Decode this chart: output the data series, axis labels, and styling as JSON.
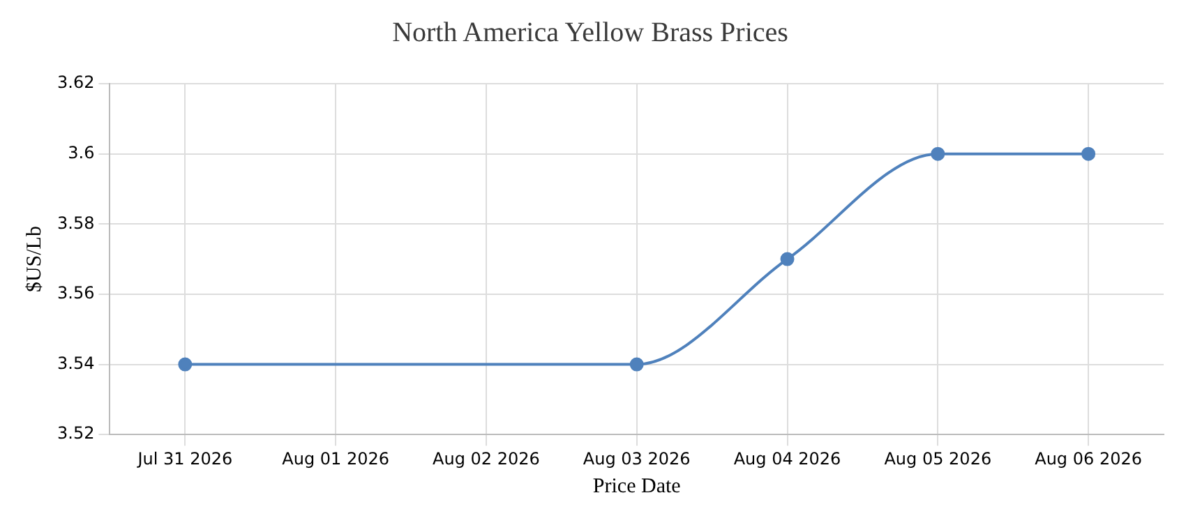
{
  "chart_data": {
    "type": "line",
    "title": "North America Yellow Brass Prices",
    "xlabel": "Price Date",
    "ylabel": "$US/Lb",
    "x": [
      "2026-07-31",
      "2026-08-03",
      "2026-08-04",
      "2026-08-05",
      "2026-08-06"
    ],
    "series": [
      {
        "color": "#4f81bc",
        "values": [
          3.54,
          3.54,
          3.57,
          3.6,
          3.6
        ]
      }
    ],
    "xlim": [
      "2026-07-30T12:00",
      "2026-08-06T12:00"
    ],
    "xticks": [
      {
        "value": "2026-07-31",
        "label": "Jul 31 2026"
      },
      {
        "value": "2026-08-01",
        "label": "Aug 01 2026"
      },
      {
        "value": "2026-08-02",
        "label": "Aug 02 2026"
      },
      {
        "value": "2026-08-03",
        "label": "Aug 03 2026"
      },
      {
        "value": "2026-08-04",
        "label": "Aug 04 2026"
      },
      {
        "value": "2026-08-05",
        "label": "Aug 05 2026"
      },
      {
        "value": "2026-08-06",
        "label": "Aug 06 2026"
      }
    ],
    "ylim": [
      3.52,
      3.62
    ],
    "yticks": [
      3.52,
      3.54,
      3.56,
      3.58,
      3.6,
      3.62
    ],
    "grid": true,
    "legend": false,
    "marker": "circle",
    "line_style": "solid"
  }
}
